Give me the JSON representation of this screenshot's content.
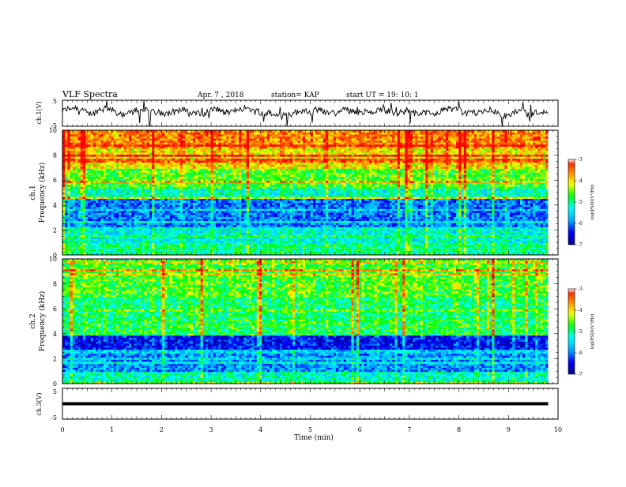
{
  "header": {
    "title": "VLF Spectra",
    "date": "Apr. 7 , 2018",
    "station": "station= KAP",
    "start_ut": "start  UT =   19: 10: 1"
  },
  "chart_data": [
    {
      "type": "line",
      "name": "ch1-waveform",
      "ylabel": "ch.1(V)",
      "ylim": [
        -5,
        5
      ],
      "yticks": [
        "5",
        "-5"
      ],
      "xlim": [
        0,
        10
      ],
      "x_end": 9.8,
      "description_values": "noisy waveform roughly within -3..+4 V"
    },
    {
      "type": "heatmap",
      "name": "ch1-spectrogram",
      "ylabel_channel": "ch.1",
      "ylabel": "Frequency  (kHz)",
      "ylim": [
        0,
        10
      ],
      "yticks": [
        "0",
        "2",
        "4",
        "6",
        "8",
        "10"
      ],
      "xlim": [
        0,
        10
      ],
      "x_end": 9.8,
      "colorbar": {
        "label": "log(PSD)(V²/Hz)",
        "range": [
          -7,
          -3
        ],
        "ticks": [
          "-3",
          "-4",
          "-5",
          "-6",
          "-7"
        ]
      },
      "band_levels": [
        {
          "f": [
            0,
            1
          ],
          "level": -5.0
        },
        {
          "f": [
            1,
            2.2
          ],
          "level": -5.3
        },
        {
          "f": [
            2.2,
            4.5
          ],
          "level": -6.0
        },
        {
          "f": [
            4.5,
            5.5
          ],
          "level": -5.2
        },
        {
          "f": [
            5.5,
            7
          ],
          "level": -4.6
        },
        {
          "f": [
            7,
            8.5
          ],
          "level": -4.0
        },
        {
          "f": [
            8.5,
            10
          ],
          "level": -3.6
        }
      ]
    },
    {
      "type": "heatmap",
      "name": "ch2-spectrogram",
      "ylabel_channel": "ch.2",
      "ylabel": "Frequency  (kHz)",
      "ylim": [
        0,
        10
      ],
      "yticks": [
        "0",
        "2",
        "4",
        "6",
        "8",
        "10"
      ],
      "xlim": [
        0,
        10
      ],
      "x_end": 9.8,
      "colorbar": {
        "label": "log(PSD)(V²/Hz)",
        "range": [
          -7,
          -3
        ],
        "ticks": [
          "-3",
          "-4",
          "-5",
          "-6",
          "-7"
        ]
      },
      "band_levels": [
        {
          "f": [
            0,
            1
          ],
          "level": -5.2
        },
        {
          "f": [
            1,
            2.5
          ],
          "level": -5.9
        },
        {
          "f": [
            2.5,
            3.8
          ],
          "level": -6.4
        },
        {
          "f": [
            3.8,
            5.2
          ],
          "level": -4.8
        },
        {
          "f": [
            5.2,
            7
          ],
          "level": -4.9
        },
        {
          "f": [
            7,
            10
          ],
          "level": -4.6
        }
      ]
    },
    {
      "type": "line",
      "name": "ch3-waveform",
      "ylabel": "ch.3(V)",
      "ylim": [
        -5,
        5
      ],
      "yticks": [
        "5",
        "-5"
      ],
      "xlim": [
        0,
        10
      ],
      "x_end": 9.8,
      "constant_value": 0,
      "xlabel": "Time  (min)",
      "xticks": [
        "0",
        "1",
        "2",
        "3",
        "4",
        "5",
        "6",
        "7",
        "8",
        "9",
        "10"
      ]
    }
  ],
  "colors": {
    "colormap": [
      "#00008b",
      "#0000ff",
      "#00aaff",
      "#00ffff",
      "#00ff00",
      "#ffff00",
      "#ff8000",
      "#ff0000",
      "#ffffff"
    ]
  }
}
